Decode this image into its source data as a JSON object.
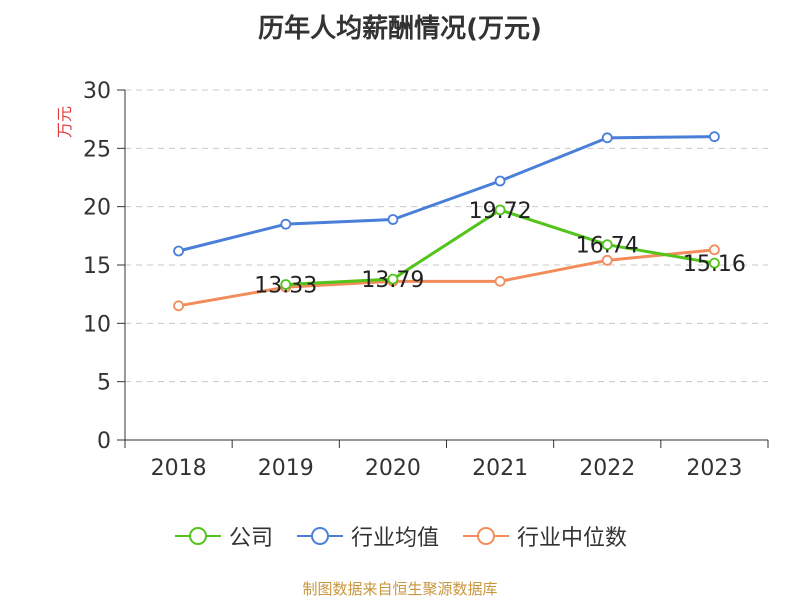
{
  "chart_data": {
    "type": "line",
    "title": "历年人均薪酬情况(万元)",
    "ylabel": "万元",
    "xlabel": "",
    "categories": [
      "2018",
      "2019",
      "2020",
      "2021",
      "2022",
      "2023"
    ],
    "ylim": [
      0,
      30
    ],
    "yticks": [
      0,
      5,
      10,
      15,
      20,
      25,
      30
    ],
    "grid": true,
    "legend_position": "bottom",
    "series": [
      {
        "name": "公司",
        "color": "#52c41a",
        "values": [
          null,
          13.33,
          13.79,
          19.72,
          16.74,
          15.16
        ],
        "data_labels": [
          null,
          "13.33",
          "13.79",
          "19.72",
          "16.74",
          "15.16"
        ]
      },
      {
        "name": "行业均值",
        "color": "#4a7fd9",
        "values": [
          16.2,
          18.5,
          18.9,
          22.2,
          25.9,
          26.0
        ]
      },
      {
        "name": "行业中位数",
        "color": "#f28c5a",
        "values": [
          11.5,
          13.1,
          13.6,
          13.6,
          15.4,
          16.3
        ]
      }
    ]
  },
  "source_text": "制图数据来自恒生聚源数据库"
}
